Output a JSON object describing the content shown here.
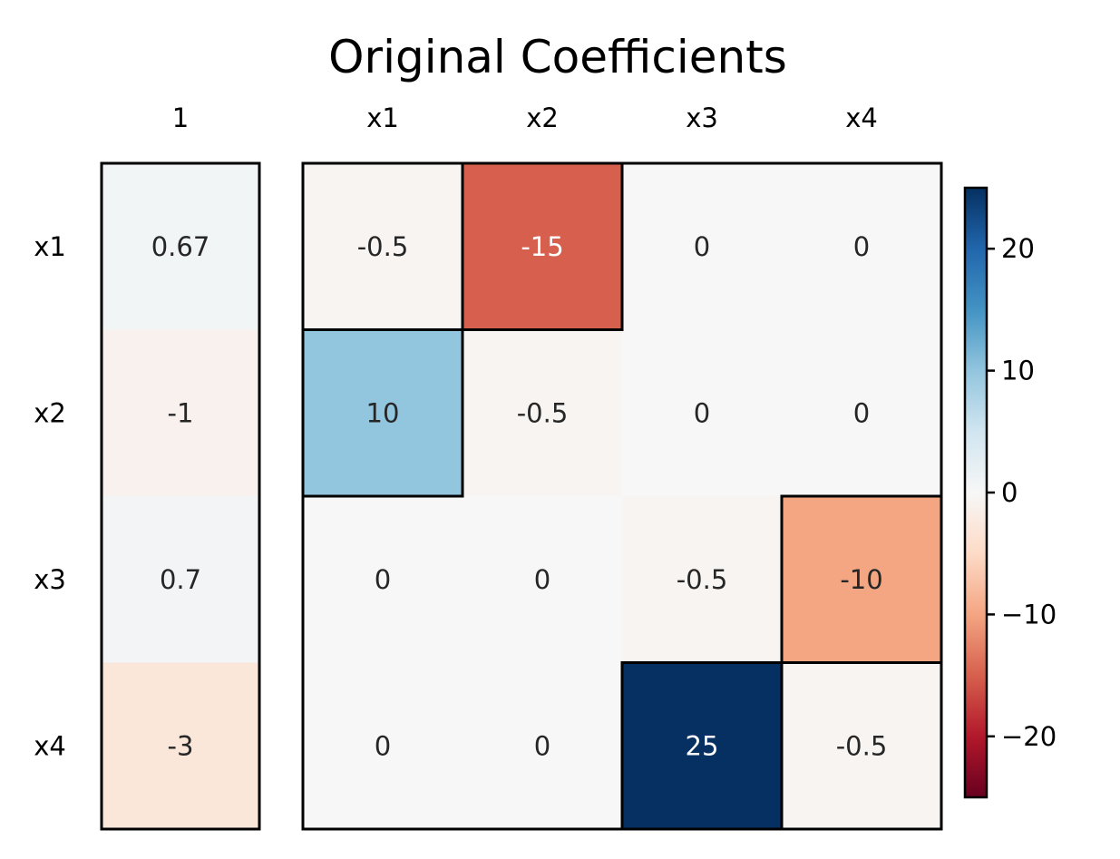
{
  "chart_data": {
    "type": "heatmap",
    "title": "Original Coefficients",
    "colormap": "RdBu",
    "vmin": -25,
    "vmax": 25,
    "colorbar_ticks": [
      20,
      10,
      0,
      -10,
      -20
    ],
    "colorbar_tick_labels": [
      "20",
      "10",
      "0",
      "−10",
      "−20"
    ],
    "row_labels": [
      "x1",
      "x2",
      "x3",
      "x4"
    ],
    "intercept": {
      "column_label": "1",
      "values": [
        0.67,
        -1,
        0.7,
        -3
      ],
      "labels": [
        "0.67",
        "-1",
        "0.7",
        "-3"
      ]
    },
    "matrix": {
      "column_labels": [
        "x1",
        "x2",
        "x3",
        "x4"
      ],
      "values": [
        [
          -0.5,
          -15,
          0,
          0
        ],
        [
          10,
          -0.5,
          0,
          0
        ],
        [
          0,
          0,
          -0.5,
          -10
        ],
        [
          0,
          0,
          25,
          -0.5
        ]
      ],
      "labels": [
        [
          "-0.5",
          "-15",
          "0",
          "0"
        ],
        [
          "10",
          "-0.5",
          "0",
          "0"
        ],
        [
          "0",
          "0",
          "-0.5",
          "-10"
        ],
        [
          "0",
          "0",
          "25",
          "-0.5"
        ]
      ],
      "highlighted_cells": [
        [
          0,
          1
        ],
        [
          1,
          0
        ],
        [
          2,
          3
        ],
        [
          3,
          2
        ]
      ]
    }
  }
}
